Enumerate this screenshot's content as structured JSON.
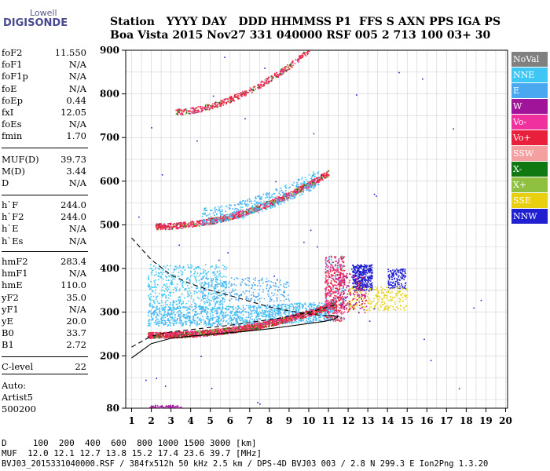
{
  "logo": {
    "line1": "Lowell",
    "line2": "DIGISONDE"
  },
  "header": {
    "line1": "Station   YYYY DAY   DDD HHMMSS P1  FFS S AXN PPS IGA PS",
    "line2": "Boa Vista 2015 Nov27 331 040000 RSF 005 2 713 100 03+ 30"
  },
  "params": {
    "group1": [
      {
        "k": "foF2",
        "v": "11.550"
      },
      {
        "k": "foF1",
        "v": "N/A"
      },
      {
        "k": "foF1p",
        "v": "N/A"
      },
      {
        "k": "foE",
        "v": "N/A"
      },
      {
        "k": "foEp",
        "v": "0.44"
      },
      {
        "k": "fxI",
        "v": "12.05"
      },
      {
        "k": "foEs",
        "v": "N/A"
      },
      {
        "k": "fmin",
        "v": "1.70"
      }
    ],
    "group2": [
      {
        "k": "MUF(D)",
        "v": "39.73"
      },
      {
        "k": "M(D)",
        "v": "3.44"
      },
      {
        "k": "D",
        "v": "N/A"
      }
    ],
    "group3": [
      {
        "k": "h`F",
        "v": "244.0"
      },
      {
        "k": "h`F2",
        "v": "244.0"
      },
      {
        "k": "h`E",
        "v": "N/A"
      },
      {
        "k": "h`Es",
        "v": "N/A"
      }
    ],
    "group4": [
      {
        "k": "hmF2",
        "v": "283.4"
      },
      {
        "k": "hmF1",
        "v": "N/A"
      },
      {
        "k": "hmE",
        "v": "110.0"
      },
      {
        "k": "yF2",
        "v": "35.0"
      },
      {
        "k": "yF1",
        "v": "N/A"
      },
      {
        "k": "yE",
        "v": "20.0"
      },
      {
        "k": "B0",
        "v": "33.7"
      },
      {
        "k": "B1",
        "v": "2.72"
      }
    ],
    "group5": [
      {
        "k": "C-level",
        "v": "22"
      }
    ],
    "auto": [
      "Auto:",
      "Artist5",
      "500200"
    ]
  },
  "footer": {
    "line1": "D     100  200  400  600  800 1000 1500 3000 [km]",
    "line2": "MUF  12.0 12.1 12.7 13.8 15.2 17.4 23.6 39.7 [MHz]",
    "line3": "BVJ03_2015331040000.RSF / 384fx512h 50 kHz 2.5 km / DPS-4D BVJ03 003 / 2.8 N 299.3 E Ion2Png 1.3.20"
  },
  "legend": [
    {
      "label": "NoVal",
      "color": "#808080"
    },
    {
      "label": "NNE",
      "color": "#3ec6f5"
    },
    {
      "label": "E",
      "color": "#4aa8f0"
    },
    {
      "label": "W",
      "color": "#a0149a"
    },
    {
      "label": "Vo-",
      "color": "#f0309c"
    },
    {
      "label": "Vo+",
      "color": "#e8203c"
    },
    {
      "label": "SSW",
      "color": "#f4a0a0"
    },
    {
      "label": "X-",
      "color": "#107810"
    },
    {
      "label": "X+",
      "color": "#90c040"
    },
    {
      "label": "SSE",
      "color": "#e8d010"
    },
    {
      "label": "NNW",
      "color": "#2020d0"
    }
  ],
  "chart_data": {
    "type": "scatter",
    "x_ticks": [
      1,
      2,
      3,
      4,
      5,
      6,
      7,
      8,
      9,
      10,
      11,
      12,
      13,
      14,
      15,
      16,
      17,
      18,
      19,
      20
    ],
    "y_ticks": [
      80,
      200,
      300,
      400,
      500,
      600,
      700,
      800,
      900
    ],
    "xlim": [
      0.7,
      20.1
    ],
    "ylim": [
      80,
      900
    ],
    "grid": true,
    "traces": [
      {
        "name": "Vo+",
        "x0": 1.8,
        "x1": 11.4,
        "h0": 248,
        "h1": 320,
        "curv": 2.2
      },
      {
        "name": "Vo+",
        "x0": 2.2,
        "x1": 11.0,
        "h0": 497,
        "h1": 620,
        "curv": 2.0
      },
      {
        "name": "Vo+",
        "x0": 3.2,
        "x1": 10.0,
        "h0": 760,
        "h1": 900,
        "curv": 1.8
      }
    ],
    "profile_solid": [
      [
        1.0,
        195
      ],
      [
        2.0,
        228
      ],
      [
        3.0,
        240
      ],
      [
        4.0,
        245
      ],
      [
        5.0,
        249
      ],
      [
        6.0,
        253
      ],
      [
        7.0,
        257
      ],
      [
        8.0,
        262
      ],
      [
        9.0,
        268
      ],
      [
        10.0,
        274
      ],
      [
        10.8,
        279
      ],
      [
        11.3,
        284
      ],
      [
        11.5,
        290
      ],
      [
        11.0,
        293
      ]
    ],
    "profile_dashed": [
      [
        1.0,
        470
      ],
      [
        2.0,
        420
      ],
      [
        3.0,
        385
      ],
      [
        4.0,
        365
      ],
      [
        5.0,
        350
      ],
      [
        6.0,
        338
      ],
      [
        7.0,
        325
      ],
      [
        8.0,
        312
      ],
      [
        9.0,
        303
      ],
      [
        10.0,
        296
      ],
      [
        10.8,
        292
      ],
      [
        11.3,
        292
      ]
    ],
    "profile_dash2": [
      [
        1.0,
        220
      ],
      [
        2.0,
        245
      ],
      [
        3.0,
        255
      ],
      [
        4.0,
        260
      ],
      [
        5.0,
        265
      ],
      [
        6.0,
        270
      ],
      [
        7.0,
        276
      ],
      [
        8.0,
        283
      ],
      [
        9.0,
        290
      ],
      [
        10.0,
        300
      ],
      [
        11.0,
        312
      ],
      [
        11.4,
        318
      ]
    ]
  }
}
